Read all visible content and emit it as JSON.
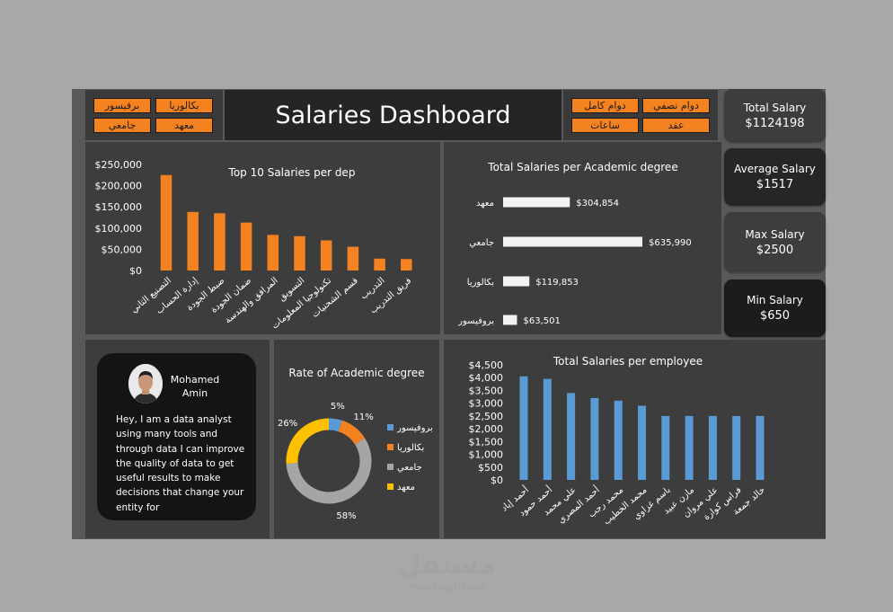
{
  "dashboard": {
    "title": "Salaries Dashboard"
  },
  "slicers": {
    "degree": [
      "برفيسور",
      "بكالوريا",
      "جامعي",
      "معهد"
    ],
    "contract": [
      "دوام كامل",
      "دوام نصفي",
      "ساعات",
      "عقد"
    ]
  },
  "kpis": [
    {
      "label": "Total Salary",
      "value": "$1124198"
    },
    {
      "label": "Average Salary",
      "value": "$1517"
    },
    {
      "label": "Max Salary",
      "value": "$2500"
    },
    {
      "label": "Min Salary",
      "value": "$650"
    }
  ],
  "colors": {
    "accent": "#f58220",
    "blue": "#5b9bd5",
    "gray": "#a5a5a5",
    "gold": "#ffc000"
  },
  "chart_data": [
    {
      "type": "bar",
      "title": "Top 10 Salaries per dep",
      "categories": [
        "التصنيع الثاني",
        "إدارة الحساب",
        "ضبط الجودة",
        "ضمان الجودة",
        "المرافق والهندسة",
        "التسويق",
        "تكنولوجيا المعلومات",
        "قسم الشحنيات",
        "التدريب",
        "فريق التدريب"
      ],
      "values": [
        225000,
        138000,
        135000,
        113000,
        84000,
        81000,
        71000,
        56000,
        28000,
        27000
      ],
      "yticks": [
        "$0",
        "$50,000",
        "$100,000",
        "$150,000",
        "$200,000",
        "$250,000"
      ],
      "ylim": [
        0,
        250000
      ]
    },
    {
      "type": "bar",
      "orientation": "horizontal",
      "title": "Total Salaries per Academic degree",
      "categories": [
        "معهد",
        "جامعي",
        "بكالوريا",
        "بروفيسور"
      ],
      "values": [
        304854,
        635990,
        119853,
        63501
      ],
      "labels": [
        "$304,854",
        "$635,990",
        "$119,853",
        "$63,501"
      ]
    },
    {
      "type": "pie",
      "title": "Rate of Academic degree",
      "categories": [
        "بروفيسور",
        "بكالوريا",
        "جامعي",
        "معهد"
      ],
      "values": [
        5,
        11,
        58,
        26
      ],
      "labels": [
        "5%",
        "11%",
        "58%",
        "26%"
      ]
    },
    {
      "type": "bar",
      "title": "Total Salaries per employee",
      "categories": [
        "أحمد إياد",
        "أحمد حمود",
        "علي محمد",
        "أحمد المصري",
        "محمد رجب",
        "محمد الخطيب",
        "باسم غزاوي",
        "مازن عبيد",
        "علي مروان",
        "فراس كوارة",
        "خالد جمعة"
      ],
      "values": [
        4050,
        3950,
        3400,
        3200,
        3100,
        2900,
        2500,
        2500,
        2500,
        2500,
        2500
      ],
      "yticks": [
        "$0",
        "$500",
        "$1,000",
        "$1,500",
        "$2,000",
        "$2,500",
        "$3,000",
        "$3,500",
        "$4,000",
        "$4,500"
      ],
      "ylim": [
        0,
        4500
      ]
    }
  ],
  "profile": {
    "name": "Mohamed Amin",
    "bio": "Hey, I am a data analyst using many tools and through data I can improve the quality of data to get useful results to make decisions that change your entity for"
  },
  "watermark": {
    "logo": "مستقل",
    "url": "mostaql.com"
  }
}
